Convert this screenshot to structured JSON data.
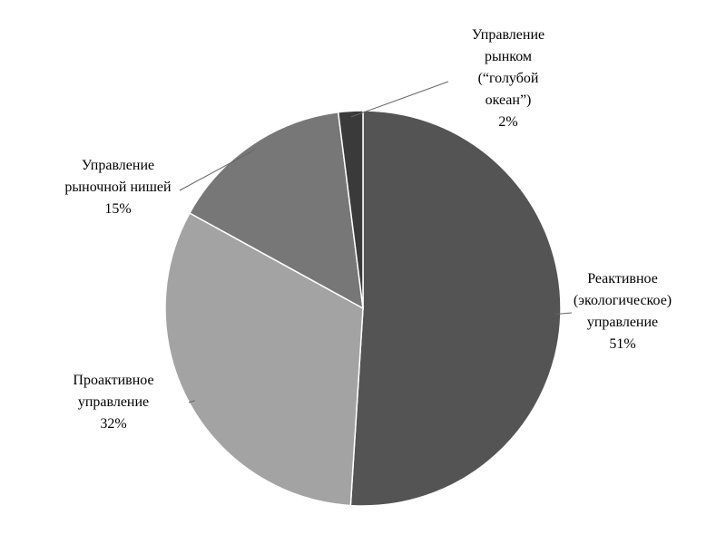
{
  "chart_data": {
    "type": "pie",
    "categories": [
      "Реактивное\n(экологическое)\nуправление",
      "Проактивное\nуправление",
      "Управление\nрыночной нишей",
      "Управление\nрынком\n(“голубой\nокеан”)"
    ],
    "values": [
      51,
      32,
      15,
      2
    ],
    "value_labels": [
      "51%",
      "32%",
      "15%",
      "2%"
    ],
    "colors": [
      "#545454",
      "#a3a3a3",
      "#777777",
      "#3a3a3a"
    ]
  }
}
